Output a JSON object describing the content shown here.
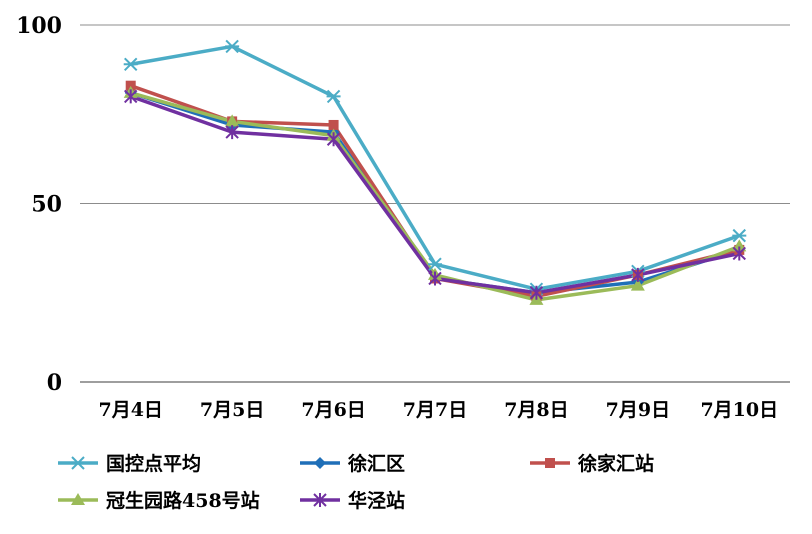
{
  "chart_data": {
    "type": "line",
    "categories": [
      "7月4日",
      "7月5日",
      "7月6日",
      "7月7日",
      "7月8日",
      "7月9日",
      "7月10日"
    ],
    "ylim": [
      0,
      100
    ],
    "yticks": [
      "0",
      "50",
      "100"
    ],
    "grid": true,
    "legend_position": "bottom",
    "series": [
      {
        "name": "国控点平均",
        "color": "#4BACC6",
        "marker": "star",
        "values": [
          89,
          94,
          80,
          33,
          26,
          31,
          41
        ]
      },
      {
        "name": "徐汇区",
        "color": "#1F6FB8",
        "marker": "diamond",
        "values": [
          81,
          72,
          70,
          29,
          25,
          28,
          37
        ]
      },
      {
        "name": "徐家汇站",
        "color": "#C0504D",
        "marker": "square",
        "values": [
          83,
          73,
          72,
          29,
          24,
          30,
          37
        ]
      },
      {
        "name": "冠生园路458号站",
        "color": "#9BBB59",
        "marker": "triangle",
        "values": [
          81,
          73,
          69,
          30,
          23,
          27,
          38
        ]
      },
      {
        "name": "华泾站",
        "color": "#7030A0",
        "marker": "asterisk",
        "values": [
          80,
          70,
          68,
          29,
          25,
          30,
          36
        ]
      }
    ]
  }
}
